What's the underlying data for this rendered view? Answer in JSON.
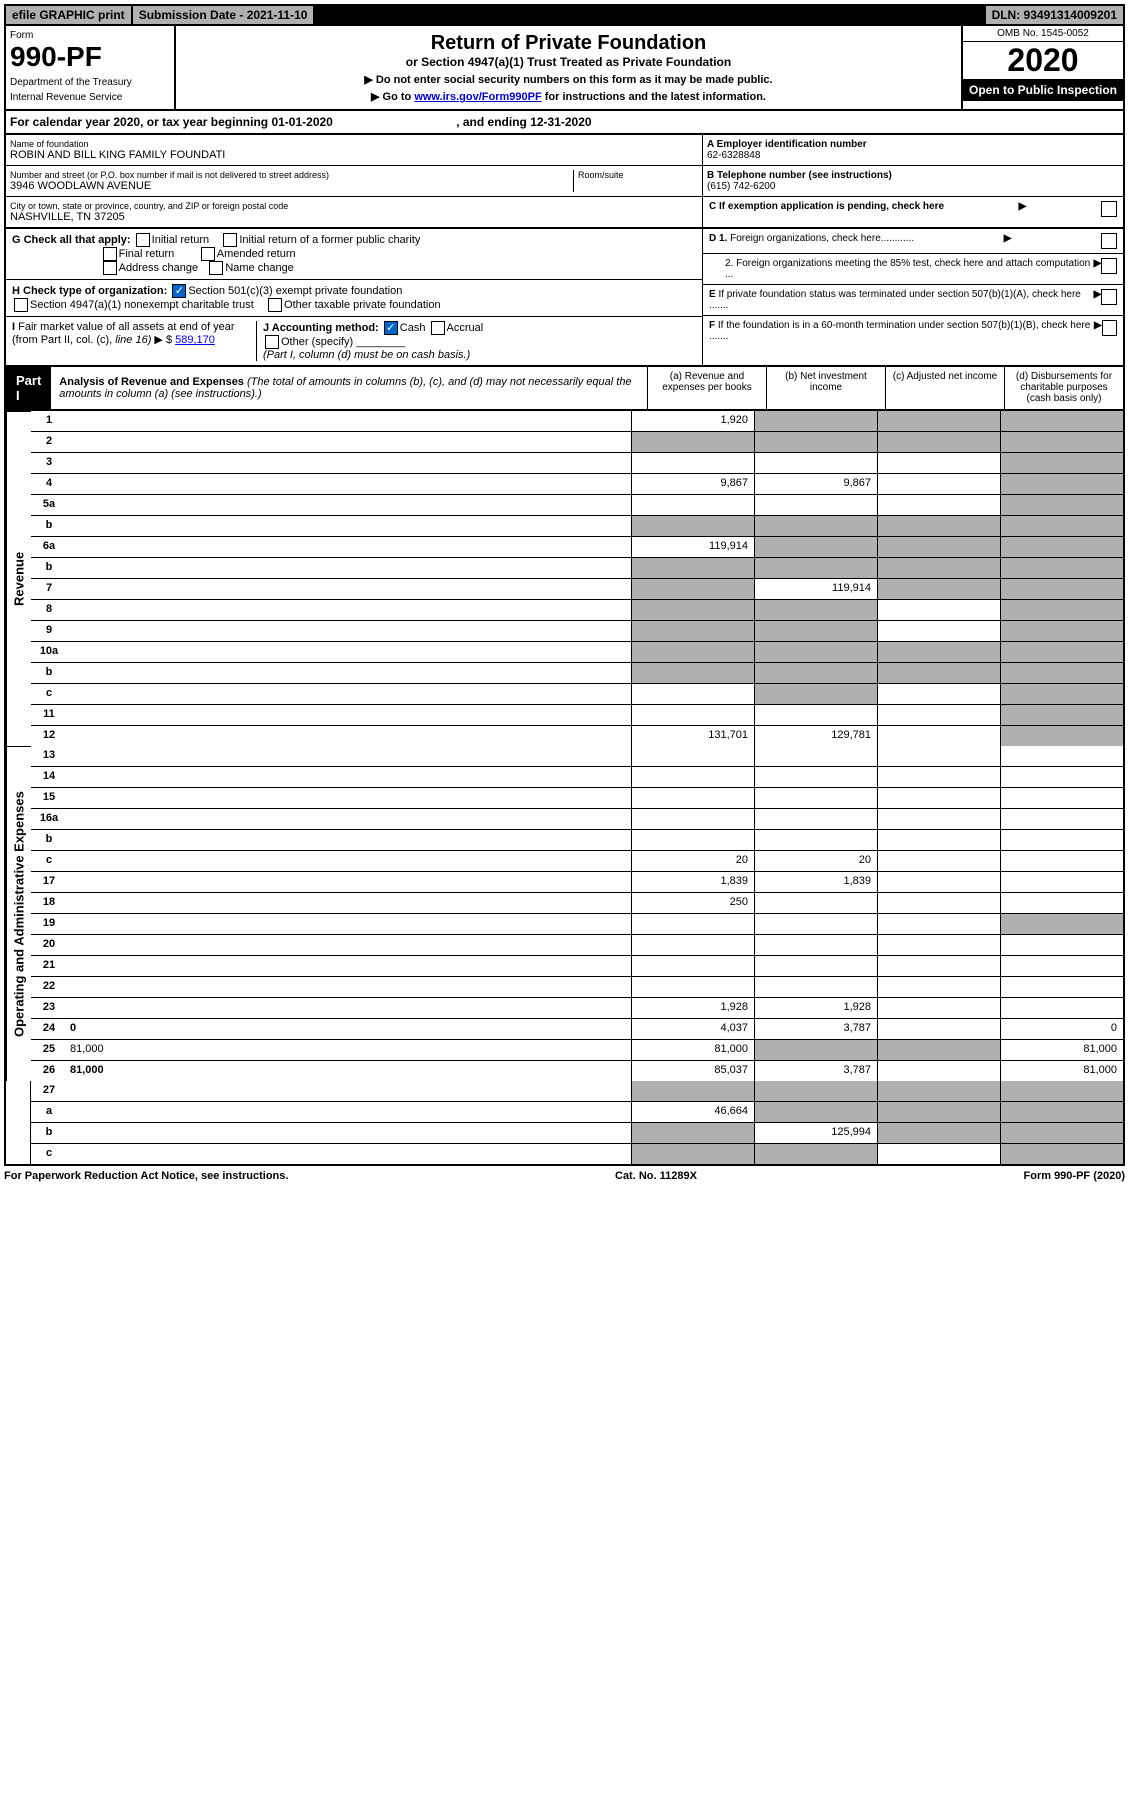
{
  "top_bar": {
    "efile": "efile GRAPHIC print",
    "submission": "Submission Date - 2021-11-10",
    "dln": "DLN: 93491314009201"
  },
  "header": {
    "form_label": "Form",
    "form_number": "990-PF",
    "dept1": "Department of the Treasury",
    "dept2": "Internal Revenue Service",
    "title": "Return of Private Foundation",
    "subtitle": "or Section 4947(a)(1) Trust Treated as Private Foundation",
    "instr1": "▶ Do not enter social security numbers on this form as it may be made public.",
    "instr2_pre": "▶ Go to ",
    "instr2_link": "www.irs.gov/Form990PF",
    "instr2_post": " for instructions and the latest information.",
    "omb": "OMB No. 1545-0052",
    "year": "2020",
    "open_public": "Open to Public Inspection"
  },
  "tax_year": {
    "text_pre": "For calendar year 2020, or tax year beginning ",
    "begin": "01-01-2020",
    "text_mid": " , and ending ",
    "end": "12-31-2020"
  },
  "entity": {
    "name_label": "Name of foundation",
    "name": "ROBIN AND BILL KING FAMILY FOUNDATI",
    "street_label": "Number and street (or P.O. box number if mail is not delivered to street address)",
    "street": "3946 WOODLAWN AVENUE",
    "room_label": "Room/suite",
    "city_label": "City or town, state or province, country, and ZIP or foreign postal code",
    "city": "NASHVILLE, TN  37205",
    "ein_label": "A Employer identification number",
    "ein": "62-6328848",
    "phone_label": "B Telephone number (see instructions)",
    "phone": "(615) 742-6200"
  },
  "checks": {
    "c_label": "C If exemption application is pending, check here",
    "g_label": "G Check all that apply:",
    "g_initial": "Initial return",
    "g_initial_former": "Initial return of a former public charity",
    "g_final": "Final return",
    "g_amended": "Amended return",
    "g_address": "Address change",
    "g_name": "Name change",
    "d1": "D 1. Foreign organizations, check here............",
    "d2": "2. Foreign organizations meeting the 85% test, check here and attach computation ...",
    "e": "E If private foundation status was terminated under section 507(b)(1)(A), check here .......",
    "h_label": "H Check type of organization:",
    "h_501c3": "Section 501(c)(3) exempt private foundation",
    "h_4947": "Section 4947(a)(1) nonexempt charitable trust",
    "h_other": "Other taxable private foundation",
    "i_label": "I Fair market value of all assets at end of year (from Part II, col. (c), line 16) ▶ $",
    "i_value": "589,170",
    "j_label": "J Accounting method:",
    "j_cash": "Cash",
    "j_accrual": "Accrual",
    "j_other": "Other (specify)",
    "j_note": "(Part I, column (d) must be on cash basis.)",
    "f": "F If the foundation is in a 60-month termination under section 507(b)(1)(B), check here ......."
  },
  "part1": {
    "label": "Part I",
    "title": "Analysis of Revenue and Expenses",
    "title_note": " (The total of amounts in columns (b), (c), and (d) may not necessarily equal the amounts in column (a) (see instructions).)",
    "col_a": "(a) Revenue and expenses per books",
    "col_b": "(b) Net investment income",
    "col_c": "(c) Adjusted net income",
    "col_d": "(d) Disbursements for charitable purposes (cash basis only)"
  },
  "sections": {
    "revenue": "Revenue",
    "expenses": "Operating and Administrative Expenses"
  },
  "lines": {
    "1": {
      "n": "1",
      "d": "",
      "a": "1,920",
      "b": "",
      "c": "",
      "grey": [
        "b",
        "c",
        "d"
      ]
    },
    "2": {
      "n": "2",
      "d": "",
      "a": "",
      "b": "",
      "c": "",
      "grey": [
        "a",
        "b",
        "c",
        "d"
      ]
    },
    "3": {
      "n": "3",
      "d": "",
      "a": "",
      "b": "",
      "c": "",
      "grey": [
        "d"
      ]
    },
    "4": {
      "n": "4",
      "d": "",
      "a": "9,867",
      "b": "9,867",
      "c": "",
      "grey": [
        "d"
      ]
    },
    "5a": {
      "n": "5a",
      "d": "",
      "a": "",
      "b": "",
      "c": "",
      "grey": [
        "d"
      ]
    },
    "5b": {
      "n": "b",
      "d": "",
      "a": "",
      "b": "",
      "c": "",
      "grey": [
        "a",
        "b",
        "c",
        "d"
      ]
    },
    "6a": {
      "n": "6a",
      "d": "",
      "a": "119,914",
      "b": "",
      "c": "",
      "grey": [
        "b",
        "c",
        "d"
      ]
    },
    "6b": {
      "n": "b",
      "d": "",
      "a": "",
      "b": "",
      "c": "",
      "grey": [
        "a",
        "b",
        "c",
        "d"
      ]
    },
    "7": {
      "n": "7",
      "d": "",
      "a": "",
      "b": "119,914",
      "c": "",
      "grey": [
        "a",
        "c",
        "d"
      ]
    },
    "8": {
      "n": "8",
      "d": "",
      "a": "",
      "b": "",
      "c": "",
      "grey": [
        "a",
        "b",
        "d"
      ]
    },
    "9": {
      "n": "9",
      "d": "",
      "a": "",
      "b": "",
      "c": "",
      "grey": [
        "a",
        "b",
        "d"
      ]
    },
    "10a": {
      "n": "10a",
      "d": "",
      "a": "",
      "b": "",
      "c": "",
      "grey": [
        "a",
        "b",
        "c",
        "d"
      ]
    },
    "10b": {
      "n": "b",
      "d": "",
      "a": "",
      "b": "",
      "c": "",
      "grey": [
        "a",
        "b",
        "c",
        "d"
      ]
    },
    "10c": {
      "n": "c",
      "d": "",
      "a": "",
      "b": "",
      "c": "",
      "grey": [
        "b",
        "d"
      ]
    },
    "11": {
      "n": "11",
      "d": "",
      "a": "",
      "b": "",
      "c": "",
      "grey": [
        "d"
      ]
    },
    "12": {
      "n": "12",
      "d": "",
      "a": "131,701",
      "b": "129,781",
      "c": "",
      "grey": [
        "d"
      ],
      "bold": true
    },
    "13": {
      "n": "13",
      "d": "",
      "a": "",
      "b": "",
      "c": ""
    },
    "14": {
      "n": "14",
      "d": "",
      "a": "",
      "b": "",
      "c": ""
    },
    "15": {
      "n": "15",
      "d": "",
      "a": "",
      "b": "",
      "c": ""
    },
    "16a": {
      "n": "16a",
      "d": "",
      "a": "",
      "b": "",
      "c": ""
    },
    "16b": {
      "n": "b",
      "d": "",
      "a": "",
      "b": "",
      "c": ""
    },
    "16c": {
      "n": "c",
      "d": "",
      "a": "20",
      "b": "20",
      "c": ""
    },
    "17": {
      "n": "17",
      "d": "",
      "a": "1,839",
      "b": "1,839",
      "c": ""
    },
    "18": {
      "n": "18",
      "d": "",
      "a": "250",
      "b": "",
      "c": ""
    },
    "19": {
      "n": "19",
      "d": "",
      "a": "",
      "b": "",
      "c": "",
      "grey": [
        "d"
      ]
    },
    "20": {
      "n": "20",
      "d": "",
      "a": "",
      "b": "",
      "c": ""
    },
    "21": {
      "n": "21",
      "d": "",
      "a": "",
      "b": "",
      "c": ""
    },
    "22": {
      "n": "22",
      "d": "",
      "a": "",
      "b": "",
      "c": ""
    },
    "23": {
      "n": "23",
      "d": "",
      "a": "1,928",
      "b": "1,928",
      "c": ""
    },
    "24": {
      "n": "24",
      "d": "0",
      "a": "4,037",
      "b": "3,787",
      "c": "",
      "bold": true
    },
    "25": {
      "n": "25",
      "d": "81,000",
      "a": "81,000",
      "b": "",
      "c": "",
      "grey": [
        "b",
        "c"
      ]
    },
    "26": {
      "n": "26",
      "d": "81,000",
      "a": "85,037",
      "b": "3,787",
      "c": "",
      "bold": true
    },
    "27": {
      "n": "27",
      "d": "",
      "a": "",
      "b": "",
      "c": "",
      "grey": [
        "a",
        "b",
        "c",
        "d"
      ]
    },
    "27a": {
      "n": "a",
      "d": "",
      "a": "46,664",
      "b": "",
      "c": "",
      "grey": [
        "b",
        "c",
        "d"
      ],
      "bold": true
    },
    "27b": {
      "n": "b",
      "d": "",
      "a": "",
      "b": "125,994",
      "c": "",
      "grey": [
        "a",
        "c",
        "d"
      ],
      "bold": true
    },
    "27c": {
      "n": "c",
      "d": "",
      "a": "",
      "b": "",
      "c": "",
      "grey": [
        "a",
        "b",
        "d"
      ],
      "bold": true
    }
  },
  "footer": {
    "left": "For Paperwork Reduction Act Notice, see instructions.",
    "center": "Cat. No. 11289X",
    "right": "Form 990-PF (2020)"
  }
}
